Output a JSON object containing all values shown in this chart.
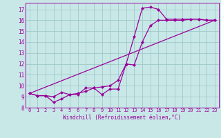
{
  "xlabel": "Windchill (Refroidissement éolien,°C)",
  "bg_color": "#c8e8e8",
  "grid_color": "#a0c8c8",
  "line_color": "#990099",
  "xlim": [
    -0.5,
    23.5
  ],
  "ylim": [
    8.0,
    17.6
  ],
  "xticks": [
    0,
    1,
    2,
    3,
    4,
    5,
    6,
    7,
    8,
    9,
    10,
    11,
    12,
    13,
    14,
    15,
    16,
    17,
    18,
    19,
    20,
    21,
    22,
    23
  ],
  "yticks": [
    8,
    9,
    10,
    11,
    12,
    13,
    14,
    15,
    16,
    17
  ],
  "line1_x": [
    0,
    1,
    2,
    3,
    4,
    5,
    6,
    7,
    8,
    9,
    10,
    11,
    12,
    13,
    14,
    15,
    16,
    17,
    18,
    19,
    20,
    21,
    22,
    23
  ],
  "line1_y": [
    9.3,
    9.1,
    9.1,
    9.0,
    9.4,
    9.2,
    9.2,
    9.8,
    9.8,
    9.9,
    10.0,
    10.5,
    12.0,
    14.5,
    17.1,
    17.2,
    17.0,
    16.1,
    16.1,
    16.1,
    16.1,
    16.1,
    16.0,
    16.0
  ],
  "line2_x": [
    0,
    1,
    2,
    3,
    4,
    5,
    6,
    7,
    8,
    9,
    10,
    11,
    12,
    13,
    14,
    15,
    16,
    17,
    18,
    19,
    20,
    21,
    22,
    23
  ],
  "line2_y": [
    9.3,
    9.1,
    9.1,
    8.5,
    8.8,
    9.2,
    9.3,
    9.5,
    9.8,
    9.2,
    9.7,
    9.7,
    12.0,
    11.9,
    14.0,
    15.5,
    16.0,
    16.0,
    16.0,
    16.0,
    16.1,
    16.1,
    16.0,
    16.0
  ],
  "line3_x": [
    0,
    23
  ],
  "line3_y": [
    9.3,
    16.0
  ],
  "marker_size": 2.5,
  "line_width": 0.9,
  "tick_fontsize": 5.0,
  "xlabel_fontsize": 5.5
}
